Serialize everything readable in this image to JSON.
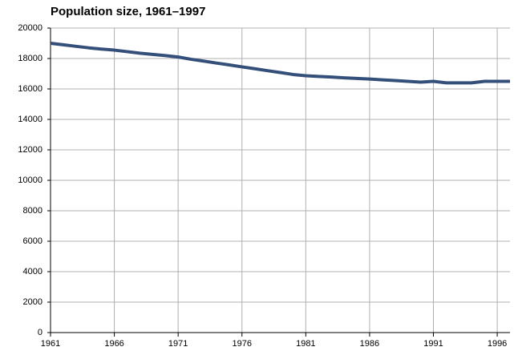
{
  "chart_data": {
    "type": "line",
    "title": "Population size, 1961–1997",
    "x": [
      1961,
      1962,
      1963,
      1964,
      1965,
      1966,
      1967,
      1968,
      1969,
      1970,
      1971,
      1972,
      1973,
      1974,
      1975,
      1976,
      1977,
      1978,
      1979,
      1980,
      1981,
      1982,
      1983,
      1984,
      1985,
      1986,
      1987,
      1988,
      1989,
      1990,
      1991,
      1992,
      1993,
      1994,
      1995,
      1996,
      1997
    ],
    "series": [
      {
        "name": "Population",
        "color": "#34507a",
        "values": [
          19000,
          18900,
          18800,
          18700,
          18620,
          18550,
          18450,
          18350,
          18270,
          18190,
          18100,
          17950,
          17830,
          17700,
          17580,
          17450,
          17330,
          17200,
          17080,
          16950,
          16870,
          16820,
          16780,
          16730,
          16690,
          16650,
          16600,
          16550,
          16500,
          16450,
          16500,
          16400,
          16400,
          16400,
          16500,
          16500,
          16500
        ]
      }
    ],
    "xlim": [
      1961,
      1997
    ],
    "xticks": [
      1961,
      1966,
      1971,
      1976,
      1981,
      1986,
      1991,
      1996
    ],
    "ylim": [
      0,
      20000
    ],
    "yticks": [
      0,
      2000,
      4000,
      6000,
      8000,
      10000,
      12000,
      14000,
      16000,
      18000,
      20000
    ],
    "grid": true
  }
}
